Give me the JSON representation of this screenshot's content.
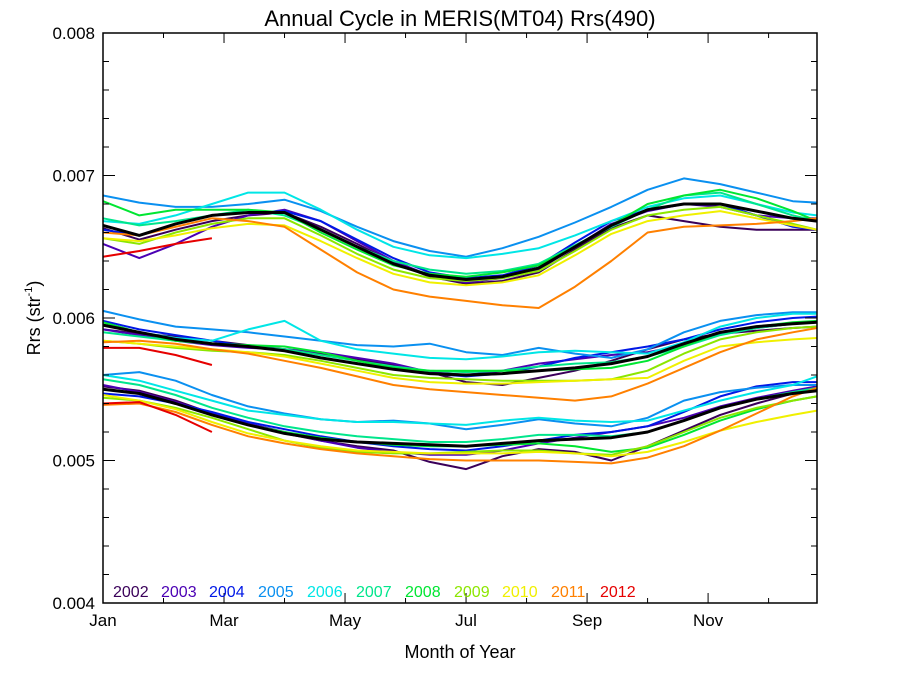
{
  "chart_data": {
    "type": "line",
    "title": "Annual Cycle in MERIS(MT04) Rrs(490)",
    "xlabel": "Month of Year",
    "ylabel": {
      "base": "Rrs (str",
      "sup": "-1",
      "close": ")"
    },
    "xlim": [
      1,
      12.8
    ],
    "ylim": [
      0.004,
      0.008
    ],
    "xtick_labels": [
      {
        "x": 1,
        "label": "Jan"
      },
      {
        "x": 3,
        "label": "Mar"
      },
      {
        "x": 5,
        "label": "May"
      },
      {
        "x": 7,
        "label": "Jul"
      },
      {
        "x": 9,
        "label": "Sep"
      },
      {
        "x": 11,
        "label": "Nov"
      }
    ],
    "ytick_labels": [
      {
        "y": 0.004,
        "label": "0.004"
      },
      {
        "y": 0.005,
        "label": "0.005"
      },
      {
        "y": 0.006,
        "label": "0.006"
      },
      {
        "y": 0.007,
        "label": "0.007"
      },
      {
        "y": 0.008,
        "label": "0.008"
      }
    ],
    "x": [
      1.0,
      1.6,
      2.2,
      2.8,
      3.4,
      4.0,
      4.6,
      5.2,
      5.8,
      6.4,
      7.0,
      7.6,
      8.2,
      8.8,
      9.4,
      10.0,
      10.6,
      11.2,
      11.8,
      12.4,
      12.8
    ],
    "groups": [
      "upper",
      "middle",
      "lower"
    ],
    "legend": {
      "placement": "bottom-left, inside plot",
      "entries": [
        "2002",
        "2003",
        "2004",
        "2005",
        "2006",
        "2007",
        "2008",
        "2009",
        "2010",
        "2011",
        "2012"
      ]
    },
    "colors": {
      "2002": "#3a0059",
      "2003": "#4b00b4",
      "2004": "#0018e6",
      "2005": "#0a90f0",
      "2006": "#00e6e6",
      "2007": "#00e68c",
      "2008": "#00e632",
      "2009": "#8ce600",
      "2010": "#f0f000",
      "2011": "#ff8000",
      "2012": "#e60000",
      "climatology": "#000000"
    },
    "series": [
      {
        "name": "2002",
        "values": {
          "upper": [
            0.00663,
            0.00655,
            0.00662,
            0.00668,
            0.00672,
            0.00674,
            0.00664,
            0.00652,
            0.00639,
            0.00629,
            0.00624,
            0.00626,
            0.00632,
            0.00648,
            0.00663,
            0.00672,
            0.00668,
            0.00664,
            0.00662,
            0.00662,
            0.00662
          ],
          "middle": [
            0.00592,
            0.00589,
            0.00587,
            0.00584,
            0.00581,
            0.00578,
            0.00575,
            0.00571,
            0.00567,
            0.00562,
            0.00555,
            0.00553,
            0.00558,
            0.00563,
            0.0057,
            0.00578,
            0.00585,
            0.00589,
            0.00591,
            0.00593,
            0.00594
          ],
          "lower": [
            0.00552,
            0.00549,
            0.00542,
            0.00533,
            0.00525,
            0.00519,
            0.00514,
            0.0051,
            0.00507,
            0.00499,
            0.00494,
            0.00503,
            0.00508,
            0.00506,
            0.005,
            0.0051,
            0.00521,
            0.00532,
            0.0054,
            0.00547,
            0.0055
          ]
        }
      },
      {
        "name": "2003",
        "values": {
          "upper": [
            0.00652,
            0.00642,
            0.00652,
            0.00664,
            0.00672,
            0.00676,
            0.00668,
            0.00654,
            0.0064,
            0.0063,
            0.00625,
            0.00628,
            0.00634,
            0.0065,
            0.00666,
            0.00675,
            0.0068,
            0.00678,
            0.00672,
            0.0067,
            0.0067
          ],
          "middle": [
            0.00592,
            0.00588,
            0.00584,
            0.00581,
            0.00579,
            0.00578,
            0.00576,
            0.00572,
            0.00568,
            0.00562,
            0.0056,
            0.00563,
            0.00568,
            0.00571,
            0.00574,
            0.00576,
            0.00581,
            0.00589,
            0.00593,
            0.00596,
            0.00597
          ],
          "lower": [
            0.00553,
            0.00548,
            0.00541,
            0.00533,
            0.00526,
            0.0052,
            0.00514,
            0.00509,
            0.00506,
            0.00504,
            0.00504,
            0.00507,
            0.00512,
            0.00516,
            0.0052,
            0.00524,
            0.0053,
            0.00538,
            0.00544,
            0.00549,
            0.00552
          ]
        }
      },
      {
        "name": "2004",
        "values": {
          "upper": [
            0.00662,
            0.00658,
            0.00666,
            0.00672,
            0.00674,
            0.00675,
            0.00668,
            0.00655,
            0.00642,
            0.00632,
            0.00628,
            0.0063,
            0.00637,
            0.00653,
            0.00668,
            0.00676,
            0.0068,
            0.0068,
            0.00672,
            0.00664,
            0.00662
          ],
          "middle": [
            0.00598,
            0.00592,
            0.00588,
            0.00584,
            0.0058,
            0.00577,
            0.00572,
            0.00568,
            0.00564,
            0.00561,
            0.00559,
            0.00561,
            0.00566,
            0.00572,
            0.00576,
            0.0058,
            0.00585,
            0.00592,
            0.00597,
            0.006,
            0.00601
          ],
          "lower": [
            0.00547,
            0.00545,
            0.0054,
            0.00534,
            0.00527,
            0.00522,
            0.00517,
            0.00513,
            0.0051,
            0.00508,
            0.00507,
            0.0051,
            0.00514,
            0.00518,
            0.0052,
            0.00524,
            0.00534,
            0.00545,
            0.00552,
            0.00555,
            0.00555
          ]
        }
      },
      {
        "name": "2005",
        "values": {
          "upper": [
            0.00686,
            0.00681,
            0.00678,
            0.00678,
            0.0068,
            0.00683,
            0.00675,
            0.00664,
            0.00654,
            0.00647,
            0.00643,
            0.00649,
            0.00657,
            0.00667,
            0.00678,
            0.0069,
            0.00698,
            0.00694,
            0.00688,
            0.00682,
            0.00681
          ],
          "middle": [
            0.00605,
            0.00599,
            0.00594,
            0.00592,
            0.0059,
            0.00587,
            0.00584,
            0.00581,
            0.0058,
            0.00582,
            0.00576,
            0.00574,
            0.00579,
            0.00575,
            0.00572,
            0.00578,
            0.0059,
            0.00598,
            0.00602,
            0.00604,
            0.00604
          ],
          "lower": [
            0.0056,
            0.00562,
            0.00556,
            0.00546,
            0.00538,
            0.00533,
            0.00529,
            0.00527,
            0.00528,
            0.00526,
            0.00522,
            0.00525,
            0.00529,
            0.00526,
            0.00524,
            0.0053,
            0.00542,
            0.00548,
            0.00551,
            0.00553,
            0.00553
          ]
        }
      },
      {
        "name": "2006",
        "values": {
          "upper": [
            0.00668,
            0.00666,
            0.00672,
            0.0068,
            0.00688,
            0.00688,
            0.00676,
            0.00662,
            0.0065,
            0.00644,
            0.00642,
            0.00645,
            0.00649,
            0.00658,
            0.00668,
            0.00678,
            0.00684,
            0.00686,
            0.0068,
            0.00674,
            0.00672
          ],
          "middle": [
            0.00595,
            0.0059,
            0.00586,
            0.00584,
            0.00592,
            0.00598,
            0.00584,
            0.00578,
            0.00575,
            0.00572,
            0.00571,
            0.00573,
            0.00576,
            0.00577,
            0.00576,
            0.00575,
            0.00583,
            0.00594,
            0.006,
            0.00603,
            0.00603
          ],
          "lower": [
            0.0056,
            0.00556,
            0.00549,
            0.00542,
            0.00535,
            0.00532,
            0.00529,
            0.00527,
            0.00527,
            0.00526,
            0.00525,
            0.00528,
            0.0053,
            0.00528,
            0.00527,
            0.00528,
            0.00535,
            0.00542,
            0.00548,
            0.00553,
            0.00559
          ]
        }
      },
      {
        "name": "2007",
        "values": {
          "upper": [
            0.0067,
            0.00665,
            0.00668,
            0.00672,
            0.00676,
            0.00672,
            0.00662,
            0.0065,
            0.0064,
            0.00634,
            0.00631,
            0.00633,
            0.00638,
            0.00651,
            0.00664,
            0.00676,
            0.00686,
            0.00688,
            0.0068,
            0.00672,
            0.00668
          ],
          "middle": [
            0.0059,
            0.00587,
            0.00584,
            0.00582,
            0.0058,
            0.00578,
            0.00574,
            0.0057,
            0.00566,
            0.00563,
            0.00562,
            0.00563,
            0.00566,
            0.00568,
            0.00569,
            0.00573,
            0.0058,
            0.00588,
            0.00593,
            0.00596,
            0.00597
          ],
          "lower": [
            0.00557,
            0.00553,
            0.00546,
            0.00537,
            0.0053,
            0.00524,
            0.0052,
            0.00517,
            0.00515,
            0.00513,
            0.00513,
            0.00515,
            0.00518,
            0.00518,
            0.00517,
            0.0052,
            0.00528,
            0.00537,
            0.00543,
            0.00548,
            0.00551
          ]
        }
      },
      {
        "name": "2008",
        "values": {
          "upper": [
            0.00682,
            0.00672,
            0.00676,
            0.00676,
            0.00676,
            0.00674,
            0.0066,
            0.00648,
            0.00637,
            0.00631,
            0.00629,
            0.00632,
            0.00637,
            0.0065,
            0.00665,
            0.0068,
            0.00686,
            0.0069,
            0.00684,
            0.00675,
            0.00668
          ],
          "middle": [
            0.00597,
            0.0059,
            0.00584,
            0.00582,
            0.00581,
            0.0058,
            0.00576,
            0.0057,
            0.00565,
            0.00563,
            0.00563,
            0.00563,
            0.00563,
            0.00564,
            0.00565,
            0.0057,
            0.0058,
            0.0059,
            0.00594,
            0.00597,
            0.00598
          ],
          "lower": [
            0.0055,
            0.00547,
            0.0054,
            0.00532,
            0.00525,
            0.0052,
            0.00516,
            0.00513,
            0.00511,
            0.0051,
            0.0051,
            0.00511,
            0.00512,
            0.0051,
            0.00506,
            0.00509,
            0.00518,
            0.00528,
            0.00536,
            0.00542,
            0.00545
          ]
        }
      },
      {
        "name": "2009",
        "values": {
          "upper": [
            0.00656,
            0.00652,
            0.0066,
            0.00666,
            0.0067,
            0.0067,
            0.00658,
            0.00645,
            0.00634,
            0.00628,
            0.00626,
            0.00628,
            0.00633,
            0.00647,
            0.00662,
            0.00672,
            0.00676,
            0.00678,
            0.00672,
            0.00666,
            0.00662
          ],
          "middle": [
            0.00584,
            0.00582,
            0.00579,
            0.00577,
            0.00576,
            0.00574,
            0.0057,
            0.00565,
            0.0056,
            0.00558,
            0.00557,
            0.00556,
            0.00556,
            0.00556,
            0.00557,
            0.00563,
            0.00575,
            0.00585,
            0.0059,
            0.00593,
            0.00594
          ],
          "lower": [
            0.00544,
            0.00542,
            0.00537,
            0.0053,
            0.00522,
            0.00514,
            0.00509,
            0.00506,
            0.00505,
            0.00505,
            0.00506,
            0.00507,
            0.00507,
            0.00505,
            0.00504,
            0.0051,
            0.0052,
            0.0053,
            0.00537,
            0.00542,
            0.00545
          ]
        }
      },
      {
        "name": "2010",
        "values": {
          "upper": [
            0.00656,
            0.00654,
            0.00658,
            0.00663,
            0.00666,
            0.00665,
            0.00654,
            0.00642,
            0.00631,
            0.00625,
            0.00623,
            0.00625,
            0.0063,
            0.00644,
            0.00659,
            0.00668,
            0.00672,
            0.00675,
            0.0067,
            0.00665,
            0.00662
          ],
          "middle": [
            0.00584,
            0.00582,
            0.0058,
            0.00578,
            0.00576,
            0.00573,
            0.00568,
            0.00563,
            0.00558,
            0.00555,
            0.00554,
            0.00554,
            0.00555,
            0.00556,
            0.00557,
            0.00558,
            0.0057,
            0.0058,
            0.00583,
            0.00585,
            0.00586
          ],
          "lower": [
            0.00546,
            0.00542,
            0.00536,
            0.00527,
            0.00519,
            0.00514,
            0.0051,
            0.00507,
            0.00506,
            0.00505,
            0.00505,
            0.00505,
            0.00506,
            0.00505,
            0.00503,
            0.00506,
            0.00513,
            0.00521,
            0.00527,
            0.00532,
            0.00535
          ]
        }
      },
      {
        "name": "2011",
        "values": {
          "upper": [
            0.0066,
            0.00658,
            0.00664,
            0.0067,
            0.00668,
            0.00664,
            0.00648,
            0.00632,
            0.0062,
            0.00615,
            0.00612,
            0.00609,
            0.00607,
            0.00622,
            0.0064,
            0.0066,
            0.00664,
            0.00665,
            0.00666,
            0.00668,
            0.0067
          ],
          "middle": [
            0.00583,
            0.00584,
            0.00582,
            0.00578,
            0.00575,
            0.0057,
            0.00565,
            0.00559,
            0.00553,
            0.0055,
            0.00548,
            0.00546,
            0.00544,
            0.00542,
            0.00545,
            0.00554,
            0.00565,
            0.00576,
            0.00585,
            0.0059,
            0.00593
          ],
          "lower": [
            0.00539,
            0.0054,
            0.00534,
            0.00525,
            0.00517,
            0.00512,
            0.00508,
            0.00505,
            0.00503,
            0.00501,
            0.005,
            0.005,
            0.005,
            0.00499,
            0.00498,
            0.00502,
            0.0051,
            0.00521,
            0.00533,
            0.00545,
            0.00551
          ]
        }
      },
      {
        "name": "2012",
        "values": {
          "upper": [
            0.00643,
            0.00647,
            0.00652,
            0.00656,
            null,
            null,
            null,
            null,
            null,
            null,
            null,
            null,
            null,
            null,
            null,
            null,
            null,
            null,
            null,
            null,
            null
          ],
          "middle": [
            0.00579,
            0.00579,
            0.00574,
            0.00567,
            null,
            null,
            null,
            null,
            null,
            null,
            null,
            null,
            null,
            null,
            null,
            null,
            null,
            null,
            null,
            null,
            null
          ],
          "lower": [
            0.0054,
            0.00541,
            0.00532,
            0.0052,
            null,
            null,
            null,
            null,
            null,
            null,
            null,
            null,
            null,
            null,
            null,
            null,
            null,
            null,
            null,
            null,
            null
          ]
        }
      },
      {
        "name": "",
        "role": "climatology",
        "values": {
          "upper": [
            0.00665,
            0.00658,
            0.00666,
            0.00672,
            0.00674,
            0.00674,
            0.00662,
            0.0065,
            0.00638,
            0.0063,
            0.00627,
            0.00629,
            0.00635,
            0.0065,
            0.00665,
            0.00676,
            0.0068,
            0.0068,
            0.00675,
            0.0067,
            0.00668
          ],
          "middle": [
            0.00595,
            0.0059,
            0.00585,
            0.00582,
            0.0058,
            0.00577,
            0.00572,
            0.00568,
            0.00564,
            0.00561,
            0.0056,
            0.00561,
            0.00563,
            0.00565,
            0.00568,
            0.00573,
            0.00582,
            0.0059,
            0.00594,
            0.00596,
            0.00597
          ],
          "lower": [
            0.0055,
            0.00547,
            0.0054,
            0.00532,
            0.00525,
            0.00519,
            0.00515,
            0.00513,
            0.00512,
            0.00511,
            0.0051,
            0.00512,
            0.00514,
            0.00515,
            0.00516,
            0.0052,
            0.00528,
            0.00537,
            0.00543,
            0.00547,
            0.00549
          ]
        }
      }
    ]
  }
}
